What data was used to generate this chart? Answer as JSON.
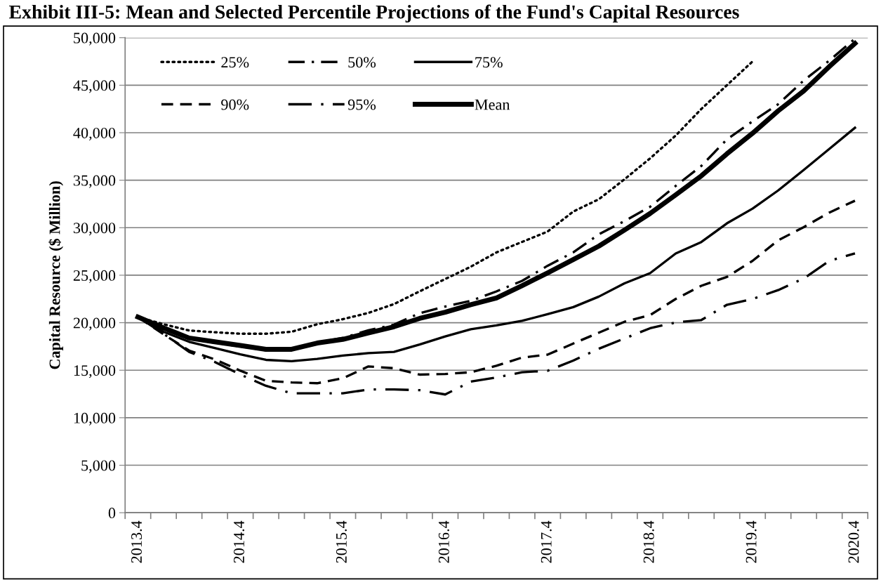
{
  "chart_data": {
    "type": "line",
    "title": "Exhibit III-5: Mean and Selected Percentile Projections of the Fund's Capital Resources",
    "ylabel": "Capital Resource ($ Million)",
    "categories": [
      "2013.4",
      null,
      null,
      null,
      "2014.4",
      null,
      null,
      null,
      "2015.4",
      null,
      null,
      null,
      "2016.4",
      null,
      null,
      null,
      "2017.4",
      null,
      null,
      null,
      "2018.4",
      null,
      null,
      null,
      "2019.4",
      null,
      null,
      null,
      "2020.4"
    ],
    "ylim": [
      0,
      50000
    ],
    "yticks": [
      {
        "value": 0,
        "label": "0"
      },
      {
        "value": 5000,
        "label": "5,000"
      },
      {
        "value": 10000,
        "label": "10,000"
      },
      {
        "value": 15000,
        "label": "15,000"
      },
      {
        "value": 20000,
        "label": "20,000"
      },
      {
        "value": 25000,
        "label": "25,000"
      },
      {
        "value": 30000,
        "label": "30,000"
      },
      {
        "value": 35000,
        "label": "35,000"
      },
      {
        "value": 40000,
        "label": "40,000"
      },
      {
        "value": 45000,
        "label": "45,000"
      },
      {
        "value": 50000,
        "label": "50,000"
      }
    ],
    "grid": "y",
    "legend": "top left",
    "marker": "none",
    "series": [
      {
        "name": "25%",
        "color": "#000000",
        "line_style": "dotted",
        "values": [
          20600,
          19840,
          19180,
          19000,
          18840,
          18840,
          19050,
          19840,
          20370,
          21030,
          21960,
          23300,
          24600,
          25900,
          27400,
          28500,
          29600,
          31700,
          33000,
          35100,
          37300,
          39700,
          42500,
          45000,
          47500,
          null,
          null,
          null,
          null
        ]
      },
      {
        "name": "50%",
        "color": "#000000",
        "line_style": "dashdot",
        "values": [
          20600,
          19300,
          18300,
          17900,
          17500,
          17100,
          17100,
          17900,
          18400,
          19200,
          19800,
          21000,
          21700,
          22300,
          23300,
          24400,
          26000,
          27400,
          29300,
          30700,
          32200,
          34400,
          36500,
          39300,
          41200,
          43000,
          45500,
          47600,
          49900
        ]
      },
      {
        "name": "75%",
        "color": "#000000",
        "line_style": "solid",
        "values": [
          20600,
          19050,
          17990,
          17330,
          16670,
          16090,
          15950,
          16190,
          16540,
          16800,
          16930,
          17700,
          18550,
          19320,
          19720,
          20200,
          20900,
          21640,
          22750,
          24140,
          25220,
          27290,
          28490,
          30460,
          32010,
          33920,
          36080,
          38300,
          40520
        ]
      },
      {
        "name": "90%",
        "color": "#000000",
        "line_style": "dashed",
        "values": [
          20600,
          18780,
          17070,
          16140,
          14950,
          13890,
          13710,
          13630,
          14150,
          15400,
          15210,
          14540,
          14600,
          14790,
          15470,
          16330,
          16640,
          17810,
          18950,
          20100,
          20800,
          22500,
          23890,
          24820,
          26510,
          28670,
          30060,
          31600,
          32840
        ]
      },
      {
        "name": "95%",
        "color": "#000000",
        "line_style": "longdashdot",
        "values": [
          20600,
          18840,
          16930,
          15870,
          14550,
          13360,
          12570,
          12570,
          12570,
          12970,
          12970,
          12900,
          12450,
          13800,
          14230,
          14790,
          14940,
          16020,
          17260,
          18340,
          19420,
          20030,
          20280,
          21890,
          22500,
          23430,
          24660,
          26510,
          27290
        ]
      },
      {
        "name": "Mean",
        "color": "#000000",
        "line_style": "solid",
        "values": [
          20600,
          19450,
          18390,
          17990,
          17600,
          17200,
          17200,
          17860,
          18250,
          18920,
          19580,
          20450,
          21100,
          21900,
          22600,
          23900,
          25250,
          26650,
          28060,
          29750,
          31500,
          33460,
          35460,
          37780,
          39940,
          42300,
          44400,
          46970,
          49400
        ]
      }
    ]
  }
}
